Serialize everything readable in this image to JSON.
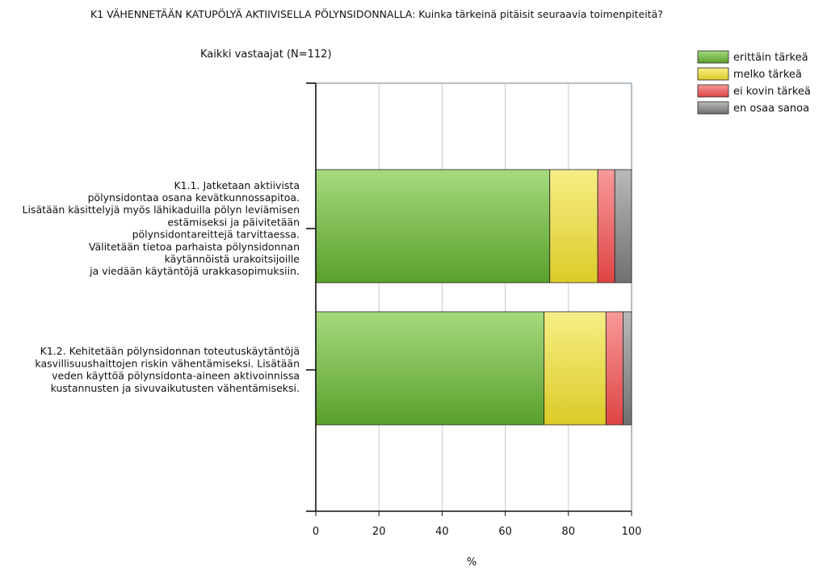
{
  "chart_data": {
    "type": "bar",
    "orientation": "horizontal",
    "stacked": true,
    "title": "K1 VÄHENNETÄÄN KATUPÖLYÄ AKTIIVISELLA PÖLYNSIDONNALLA: Kuinka tärkeinä pitäisit seuraavia toimenpiteitä?",
    "subtitle": "Kaikki vastaajat (N=112)",
    "xlabel": "%",
    "ylabel": "",
    "xlim": [
      0,
      100
    ],
    "xticks": [
      "0",
      "20",
      "40",
      "60",
      "80",
      "100"
    ],
    "grid": true,
    "legend_position": "top-right",
    "categories": [
      [
        "K1.1. Jatketaan aktiivista",
        "pölynsidontaa osana kevätkunnossapitoa.",
        "Lisätään käsittelyjä myös lähikaduilla pölyn leviämisen",
        "estämiseksi ja päivitetään",
        "pölynsidontareittejä tarvittaessa.",
        "Välitetään tietoa parhaista pölynsidonnan",
        "käytännöistä urakoitsijoille",
        "ja viedään käytäntöjä urakkasopimuksiin."
      ],
      [
        "K1.2. Kehitetään pölynsidonnan toteutuskäytäntöjä",
        "kasvillisuushaittojen riskin vähentämiseksi. Lisätään",
        "veden käyttöä pölynsidonta-aineen aktivoinnissa",
        "kustannusten ja sivuvaikutusten vähentämiseksi."
      ]
    ],
    "series": [
      {
        "name": "erittäin tärkeä",
        "color": "#7cc243",
        "values": [
          74.1,
          72.3
        ]
      },
      {
        "name": "melko tärkeä",
        "color": "#f0e04a",
        "values": [
          15.2,
          19.6
        ]
      },
      {
        "name": "ei kovin tärkeä",
        "color": "#f06565",
        "values": [
          5.4,
          5.4
        ]
      },
      {
        "name": "en osaa sanoa",
        "color": "#959595",
        "values": [
          5.4,
          2.7
        ]
      }
    ]
  }
}
